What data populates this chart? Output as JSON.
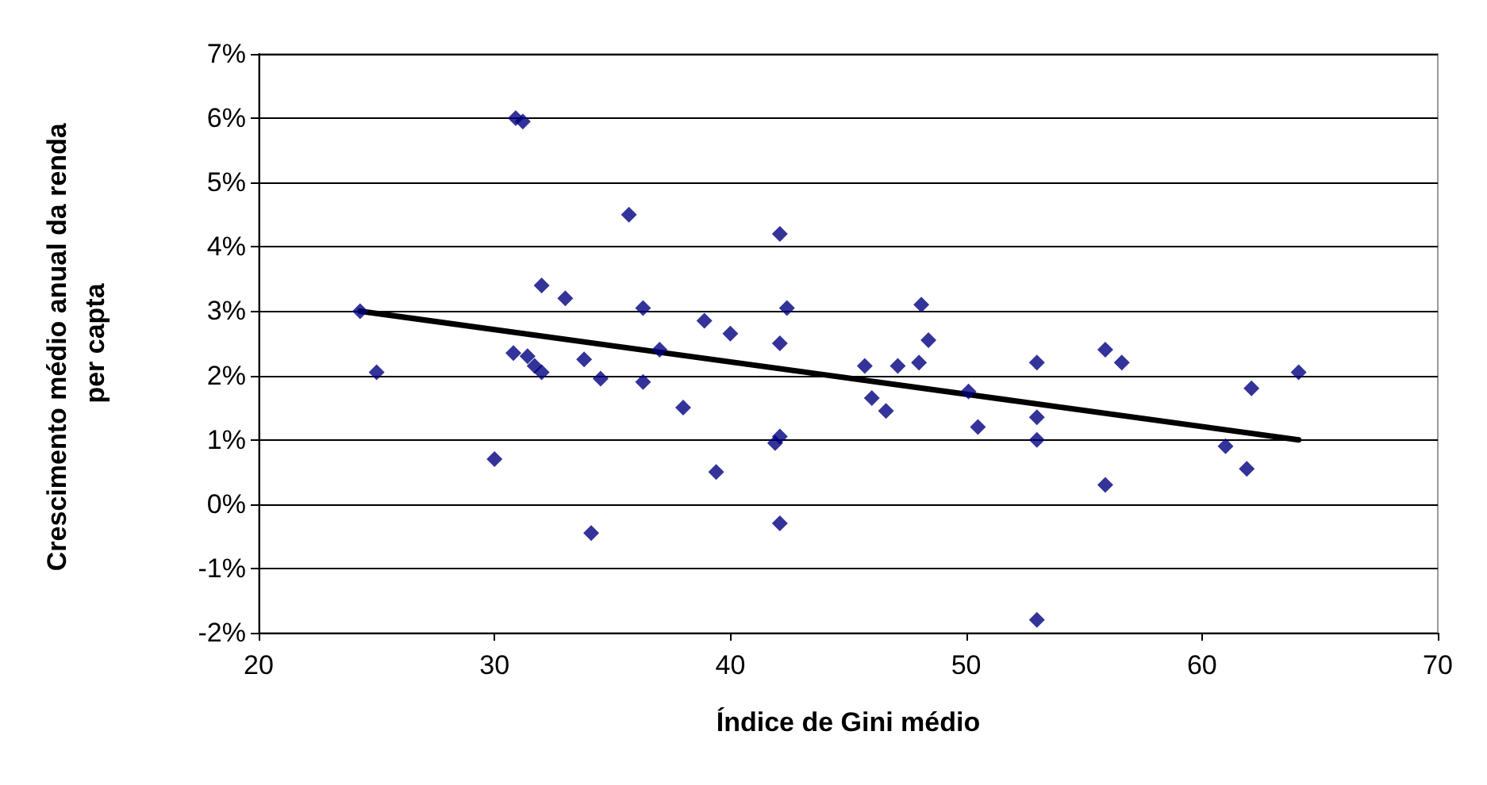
{
  "chart_data": {
    "type": "scatter",
    "xlabel": "Índice de Gini médio",
    "ylabel": "Crescimento médio anual da renda per capta",
    "xlim": [
      20,
      70
    ],
    "xticks": [
      20,
      30,
      40,
      50,
      60,
      70
    ],
    "ylim": [
      -2,
      7
    ],
    "yticks": [
      {
        "value": -2,
        "label": "-2%"
      },
      {
        "value": -1,
        "label": "-1%"
      },
      {
        "value": 0,
        "label": "0%"
      },
      {
        "value": 1,
        "label": "1%"
      },
      {
        "value": 2,
        "label": "2%"
      },
      {
        "value": 3,
        "label": "3%"
      },
      {
        "value": 4,
        "label": "4%"
      },
      {
        "value": 5,
        "label": "5%"
      },
      {
        "value": 6,
        "label": "6%"
      },
      {
        "value": 7,
        "label": "7%"
      }
    ],
    "grid": "y",
    "marker": "diamond",
    "series": [
      {
        "color": "#000080",
        "x": [
          24.3,
          25.0,
          30.0,
          30.8,
          30.9,
          31.2,
          31.4,
          31.7,
          32.0,
          32.0,
          33.0,
          33.8,
          34.1,
          34.5,
          35.7,
          36.3,
          36.3,
          37.0,
          38.0,
          38.9,
          39.4,
          40.0,
          42.1,
          42.4,
          42.1,
          42.1,
          41.9,
          42.1,
          45.7,
          46.0,
          46.6,
          47.1,
          48.0,
          48.1,
          48.4,
          50.1,
          50.5,
          53.0,
          53.0,
          53.0,
          53.0,
          55.9,
          55.9,
          56.6,
          61.0,
          61.9,
          62.1,
          64.1
        ],
        "values": [
          3.0,
          2.05,
          0.7,
          2.35,
          6.0,
          5.95,
          2.3,
          2.15,
          2.05,
          3.4,
          3.2,
          2.25,
          -0.45,
          1.95,
          4.5,
          3.05,
          1.9,
          2.4,
          1.5,
          2.85,
          0.5,
          2.65,
          4.2,
          3.05,
          2.5,
          1.05,
          0.95,
          -0.3,
          2.15,
          1.65,
          1.45,
          2.15,
          2.2,
          3.1,
          2.55,
          1.75,
          1.2,
          2.2,
          1.35,
          1.0,
          -1.8,
          2.4,
          0.3,
          2.2,
          0.9,
          0.55,
          1.8,
          2.05
        ]
      },
      {
        "type": "line",
        "color": "#000000",
        "x": [
          24.3,
          64.1
        ],
        "values": [
          3.0,
          1.0
        ],
        "marker": "none",
        "line_style": "solid"
      }
    ]
  }
}
